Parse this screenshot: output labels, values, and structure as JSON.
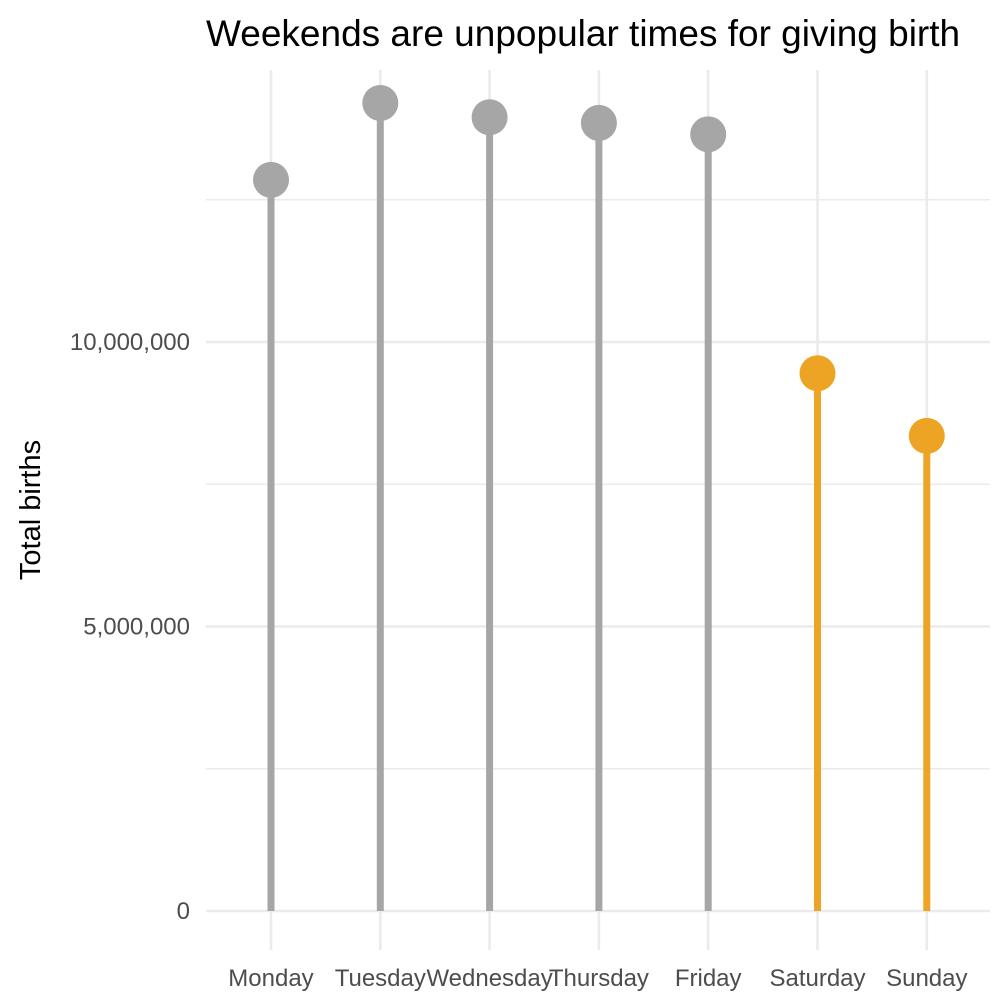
{
  "chart_data": {
    "type": "lollipop",
    "title": "Weekends are unpopular times for giving birth",
    "xlabel": "",
    "ylabel": "Total births",
    "categories": [
      "Monday",
      "Tuesday",
      "Wednesday",
      "Thursday",
      "Friday",
      "Saturday",
      "Sunday"
    ],
    "values": [
      12850000,
      14200000,
      13950000,
      13850000,
      13650000,
      9450000,
      8350000
    ],
    "is_weekend": [
      false,
      false,
      false,
      false,
      false,
      true,
      true
    ],
    "ylim": [
      0,
      14200000
    ],
    "y_ticks": [
      0,
      5000000,
      10000000
    ],
    "y_tick_labels": [
      "0",
      "5,000,000",
      "10,000,000"
    ],
    "y_minor_ticks": [
      2500000,
      7500000,
      12500000
    ],
    "grid": true,
    "legend": "none",
    "colors": {
      "weekday": "#a6a6a6",
      "weekend": "#eda323"
    }
  }
}
